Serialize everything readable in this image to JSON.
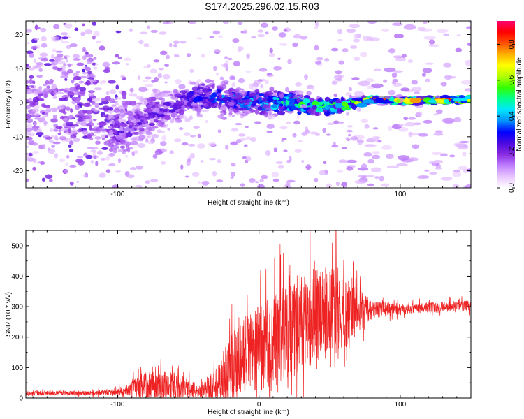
{
  "page_title": "S174.2025.296.02.15.R03",
  "chart_data": [
    {
      "type": "heatmap",
      "title": "S174.2025.296.02.15.R03",
      "xlabel": "Height of straight line (km)",
      "ylabel": "Frequency (Hz)",
      "xlim": [
        -165,
        150
      ],
      "ylim": [
        -25,
        24
      ],
      "x_ticks": [
        -100,
        0,
        100
      ],
      "y_ticks": [
        -20,
        -10,
        0,
        10,
        20
      ],
      "colorbar": {
        "label": "Normalized spectral amplitude",
        "range": [
          0.0,
          0.93
        ],
        "ticks": [
          0.0,
          0.2,
          0.4,
          0.6,
          0.8
        ],
        "colors": [
          "#ffffff",
          "#e9c6ff",
          "#c080ff",
          "#8a2be2",
          "#4b0adf",
          "#0000ff",
          "#0090ff",
          "#00e5ff",
          "#00ff90",
          "#33ff00",
          "#b0ff00",
          "#ffff00",
          "#ffb000",
          "#ff5000",
          "#ff0000",
          "#ff0070"
        ]
      },
      "band_profile": {
        "x_km": [
          -165,
          -120,
          -100,
          -80,
          -60,
          -40,
          -20,
          0,
          20,
          40,
          60,
          70,
          80,
          100,
          150
        ],
        "center_hz": [
          0,
          0,
          -8,
          -4,
          -1,
          2,
          1,
          0,
          0,
          -1,
          -1,
          0,
          1,
          0.5,
          1
        ],
        "halfwidth_hz": [
          24,
          24,
          12,
          9,
          6,
          6,
          5,
          4.5,
          4,
          3.5,
          2.5,
          1.5,
          1,
          1,
          1
        ],
        "peak_amplitude": [
          0.2,
          0.25,
          0.25,
          0.25,
          0.28,
          0.35,
          0.4,
          0.45,
          0.55,
          0.6,
          0.65,
          0.8,
          0.85,
          0.88,
          0.9
        ]
      }
    },
    {
      "type": "line",
      "xlabel": "Height of straight line (km)",
      "ylabel": "SNR (10 * v/v)",
      "xlim": [
        -165,
        150
      ],
      "ylim": [
        0,
        550
      ],
      "x_ticks": [
        -100,
        0,
        100
      ],
      "y_ticks": [
        0,
        100,
        200,
        300,
        400,
        500
      ],
      "series": [
        {
          "name": "SNR",
          "color": "#ee2222",
          "x_km": [
            -165,
            -120,
            -100,
            -90,
            -80,
            -70,
            -60,
            -50,
            -40,
            -30,
            -20,
            -10,
            0,
            10,
            20,
            30,
            40,
            50,
            60,
            70,
            80,
            90,
            100,
            110,
            120,
            130,
            140,
            150
          ],
          "baseline": [
            15,
            15,
            20,
            30,
            40,
            40,
            35,
            30,
            20,
            40,
            90,
            130,
            150,
            170,
            200,
            230,
            260,
            270,
            270,
            280,
            285,
            290,
            290,
            295,
            295,
            298,
            300,
            300
          ],
          "spread": [
            15,
            15,
            20,
            50,
            90,
            100,
            90,
            60,
            40,
            120,
            230,
            250,
            280,
            300,
            320,
            330,
            320,
            300,
            250,
            150,
            60,
            45,
            40,
            35,
            35,
            35,
            35,
            35
          ]
        }
      ]
    }
  ]
}
